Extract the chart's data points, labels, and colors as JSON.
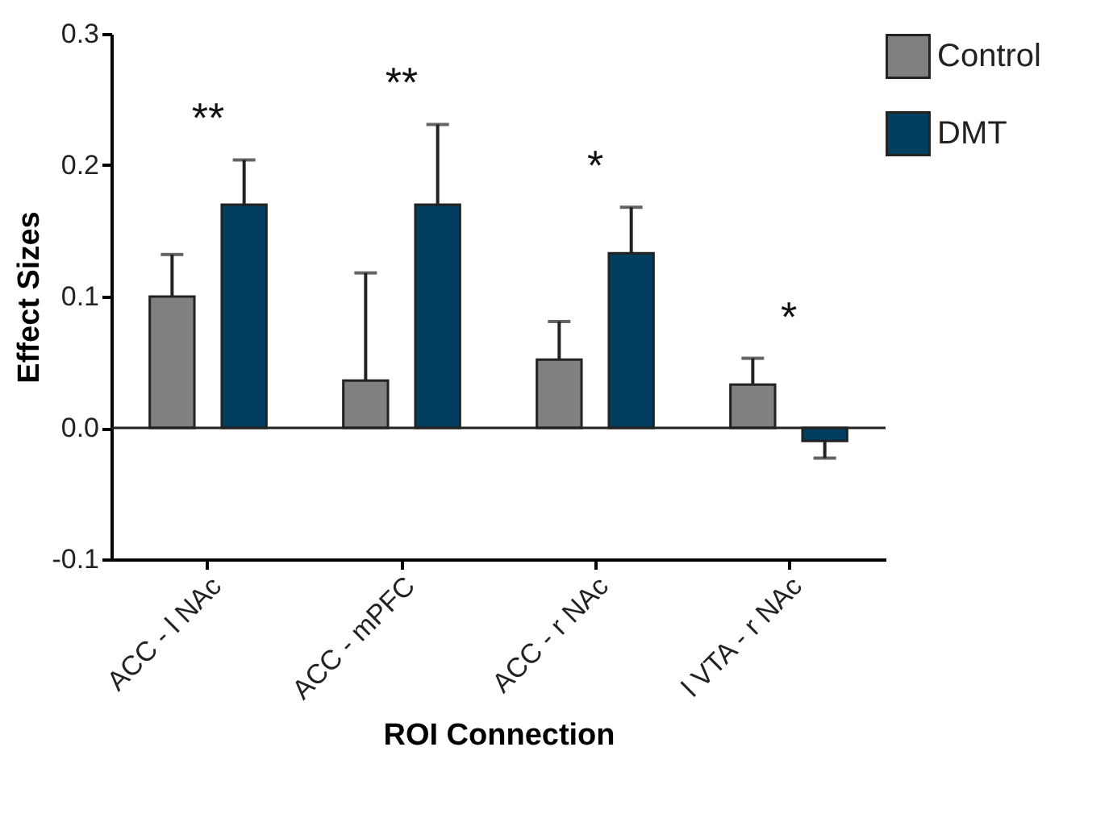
{
  "chart_data": {
    "type": "bar",
    "xlabel": "ROI Connection",
    "ylabel": "Effect Sizes",
    "categories": [
      "ACC - l NAc",
      "ACC - mPFC",
      "ACC - r NAc",
      "l VTA - r NAc"
    ],
    "series": [
      {
        "name": "Control",
        "color": "#808080",
        "values": [
          0.1,
          0.036,
          0.052,
          0.033
        ],
        "errors": [
          [
            0.1,
            0.132
          ],
          [
            0.036,
            0.118
          ],
          [
            0.052,
            0.081
          ],
          [
            0.033,
            0.053
          ]
        ]
      },
      {
        "name": "DMT",
        "color": "#003f5f",
        "values": [
          0.17,
          0.17,
          0.133,
          -0.01
        ],
        "errors": [
          [
            0.17,
            0.204
          ],
          [
            0.17,
            0.231
          ],
          [
            0.133,
            0.168
          ],
          [
            -0.023,
            -0.01
          ]
        ]
      }
    ],
    "ylim": [
      -0.1,
      0.3
    ],
    "yticks": [
      -0.1,
      {
        "value": 0,
        "label": "0.0"
      },
      0.1,
      0.2,
      0.3
    ],
    "ref_lines": [
      {
        "axis": "y",
        "value": 0
      }
    ],
    "annotations": [
      "**",
      "**",
      "*",
      "*"
    ],
    "grid": false,
    "legend": "top right"
  }
}
